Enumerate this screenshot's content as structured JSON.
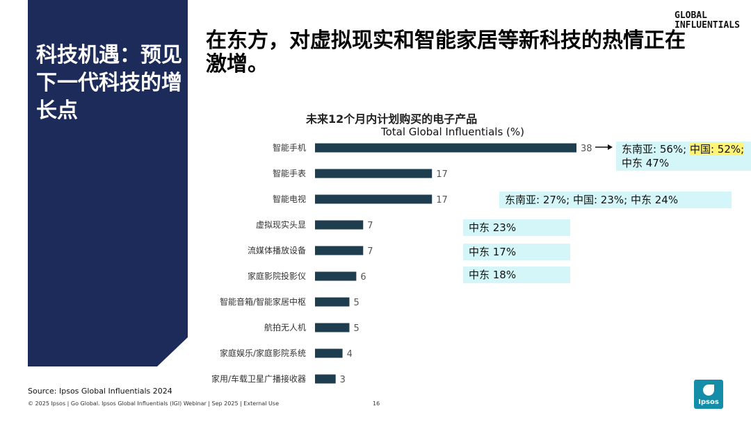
{
  "side": {
    "title": "科技机遇：预见下一代科技的增长点"
  },
  "brand": {
    "line1": "GLOBAL",
    "line2": "INFLUENTIALS"
  },
  "headline": "在东方，对虚拟现实和智能家居等新科技的热情正在激增。",
  "chart_data": {
    "type": "bar",
    "orientation": "horizontal",
    "title": "未来12个月内计划购买的电子产品",
    "subtitle": "Total Global Influentials (%)",
    "categories": [
      "智能手机",
      "智能手表",
      "智能电视",
      "虚拟现实头显",
      "流媒体播放设备",
      "家庭影院投影仪",
      "智能音箱/智能家居中枢",
      "航拍无人机",
      "家庭娱乐/家庭影院系统",
      "家用/车载卫星广播接收器"
    ],
    "values": [
      38,
      17,
      17,
      7,
      7,
      6,
      5,
      5,
      4,
      3
    ],
    "bar_color": "#1e3d4e",
    "xlim": [
      0,
      38
    ],
    "grid": false,
    "legend": "none"
  },
  "callouts": {
    "smartphone_a": "东南亚: 56%; ",
    "smartphone_b": "中国: 52%;",
    "smartphone_c": "中东 47%",
    "tv": "东南亚: 27%; 中国: 23%; 中东 24%",
    "vr": "中东 23%",
    "streaming": "中东 17%",
    "projector": "中东 18%"
  },
  "footer": {
    "source": "Source: Ipsos Global Influentials 2024",
    "legal": "© 2025 Ipsos | Go Global. Ipsos Global Influentials (IGI) Webinar | Sep 2025 | External Use",
    "page": "16",
    "logo": "Ipsos"
  },
  "colors": {
    "navy": "#1c2b59",
    "callout_bg": "#d4f6f8",
    "highlight": "#fff37a",
    "logo": "#148ea8"
  }
}
